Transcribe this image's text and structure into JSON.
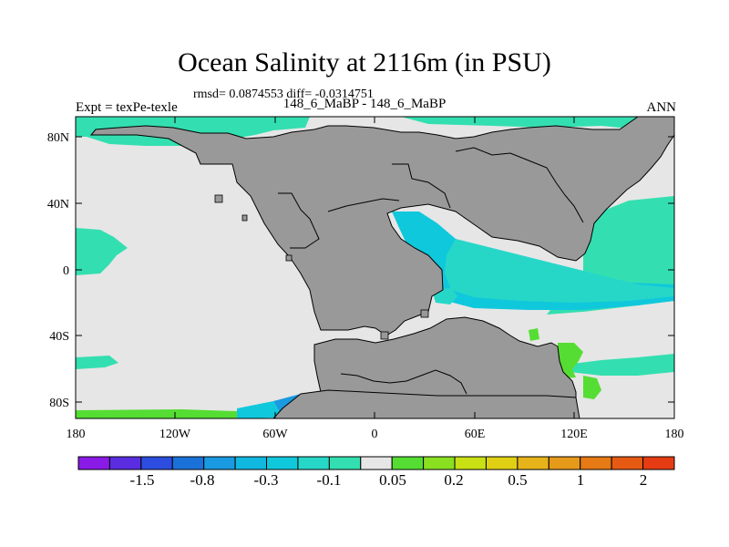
{
  "title": "Ocean Salinity at 2116m (in PSU)",
  "stats": "rmsd= 0.0874553 diff= -0.0314751",
  "expt_label": "Expt = texPe-texle",
  "comparison": "148_6_MaBP - 148_6_MaBP",
  "season": "ANN",
  "colors": {
    "land": "#999999",
    "near_zero": "#e6e6e6",
    "teal": "#33dfb0",
    "cyan": "#10c8dc",
    "aqua": "#26d7c8",
    "green": "#55dd33",
    "yellow": "#c8c814",
    "blue_deep": "#1a72d8"
  },
  "map": {
    "lon_ticks": [
      "180",
      "120W",
      "60W",
      "0",
      "60E",
      "120E",
      "180"
    ],
    "lat_ticks": [
      "80N",
      "40N",
      "0",
      "40S",
      "80S"
    ]
  },
  "colorbar": {
    "colors": [
      "#8a1ae6",
      "#5a2de0",
      "#2d4de0",
      "#1a72d8",
      "#1a9ae0",
      "#10b8e0",
      "#10c8dc",
      "#26d7c8",
      "#33dfb0",
      "#e6e6e6",
      "#55dd33",
      "#8ae020",
      "#c8e014",
      "#e0d014",
      "#e6b41a",
      "#e69a1a",
      "#e67a14",
      "#e65a14",
      "#e63c14"
    ],
    "labels": [
      "-1.5",
      "-0.8",
      "-0.3",
      "-0.1",
      "0.05",
      "0.2",
      "0.5",
      "1",
      "2"
    ]
  }
}
